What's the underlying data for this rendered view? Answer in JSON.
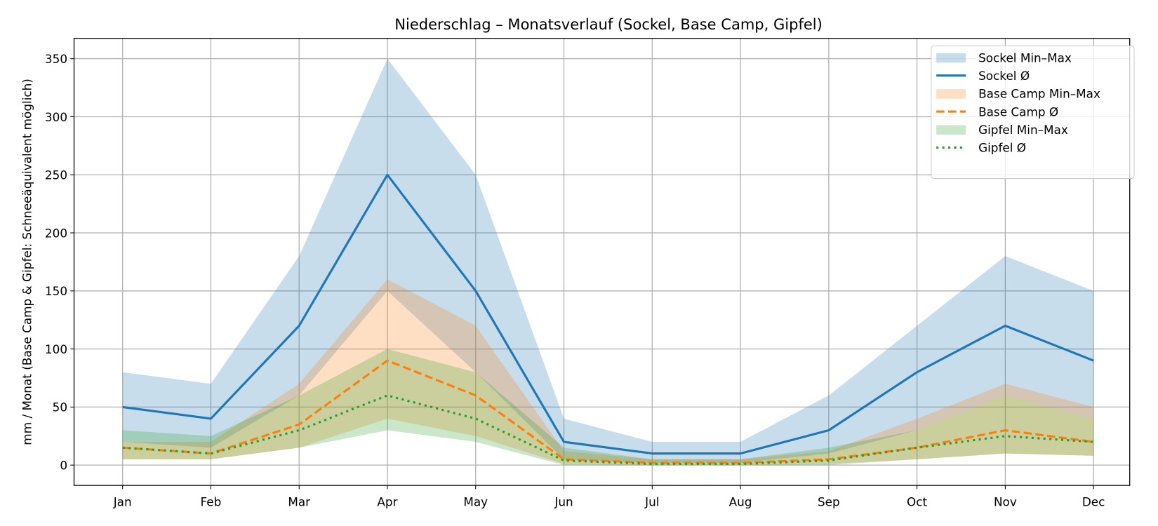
{
  "chart_data": {
    "type": "line",
    "title": "Niederschlag – Monatsverlauf (Sockel, Base Camp, Gipfel)",
    "xlabel": "",
    "ylabel": "mm / Monat (Base Camp & Gipfel: Schneeäquivalent möglich)",
    "categories": [
      "Jan",
      "Feb",
      "Mar",
      "Apr",
      "May",
      "Jun",
      "Jul",
      "Aug",
      "Sep",
      "Oct",
      "Nov",
      "Dec"
    ],
    "ylim": [
      -17.5,
      367.5
    ],
    "yticks": [
      0,
      50,
      100,
      150,
      200,
      250,
      300,
      350
    ],
    "grid": true,
    "legend_position": "top-right",
    "bands": [
      {
        "name": "Sockel Min–Max",
        "color": "#1f77b4",
        "min": [
          20,
          15,
          60,
          150,
          80,
          5,
          2,
          2,
          10,
          30,
          60,
          40
        ],
        "max": [
          80,
          70,
          180,
          350,
          250,
          40,
          20,
          20,
          60,
          120,
          180,
          150
        ]
      },
      {
        "name": "Base Camp Min–Max",
        "color": "#ff7f0e",
        "min": [
          5,
          5,
          15,
          40,
          25,
          1,
          0,
          0,
          1,
          5,
          10,
          8
        ],
        "max": [
          20,
          20,
          70,
          160,
          120,
          12,
          5,
          5,
          12,
          40,
          70,
          50
        ]
      },
      {
        "name": "Gipfel Min–Max",
        "color": "#2ca02c",
        "min": [
          5,
          5,
          15,
          30,
          20,
          0,
          0,
          0,
          0,
          5,
          10,
          8
        ],
        "max": [
          30,
          25,
          60,
          100,
          80,
          15,
          5,
          5,
          15,
          30,
          60,
          40
        ]
      }
    ],
    "series": [
      {
        "name": "Sockel Ø",
        "color": "#1f77b4",
        "style": "solid",
        "values": [
          50,
          40,
          120,
          250,
          150,
          20,
          10,
          10,
          30,
          80,
          120,
          90
        ]
      },
      {
        "name": "Base Camp Ø",
        "color": "#ff7f0e",
        "style": "dashed",
        "values": [
          15,
          10,
          35,
          90,
          60,
          5,
          2,
          2,
          5,
          15,
          30,
          20
        ]
      },
      {
        "name": "Gipfel Ø",
        "color": "#2ca02c",
        "style": "dotted",
        "values": [
          15,
          10,
          30,
          60,
          40,
          4,
          1,
          1,
          4,
          15,
          25,
          20
        ]
      }
    ],
    "legend_order": [
      "Sockel Min–Max",
      "Sockel Ø",
      "Base Camp Min–Max",
      "Base Camp Ø",
      "Gipfel Min–Max",
      "Gipfel Ø"
    ]
  }
}
